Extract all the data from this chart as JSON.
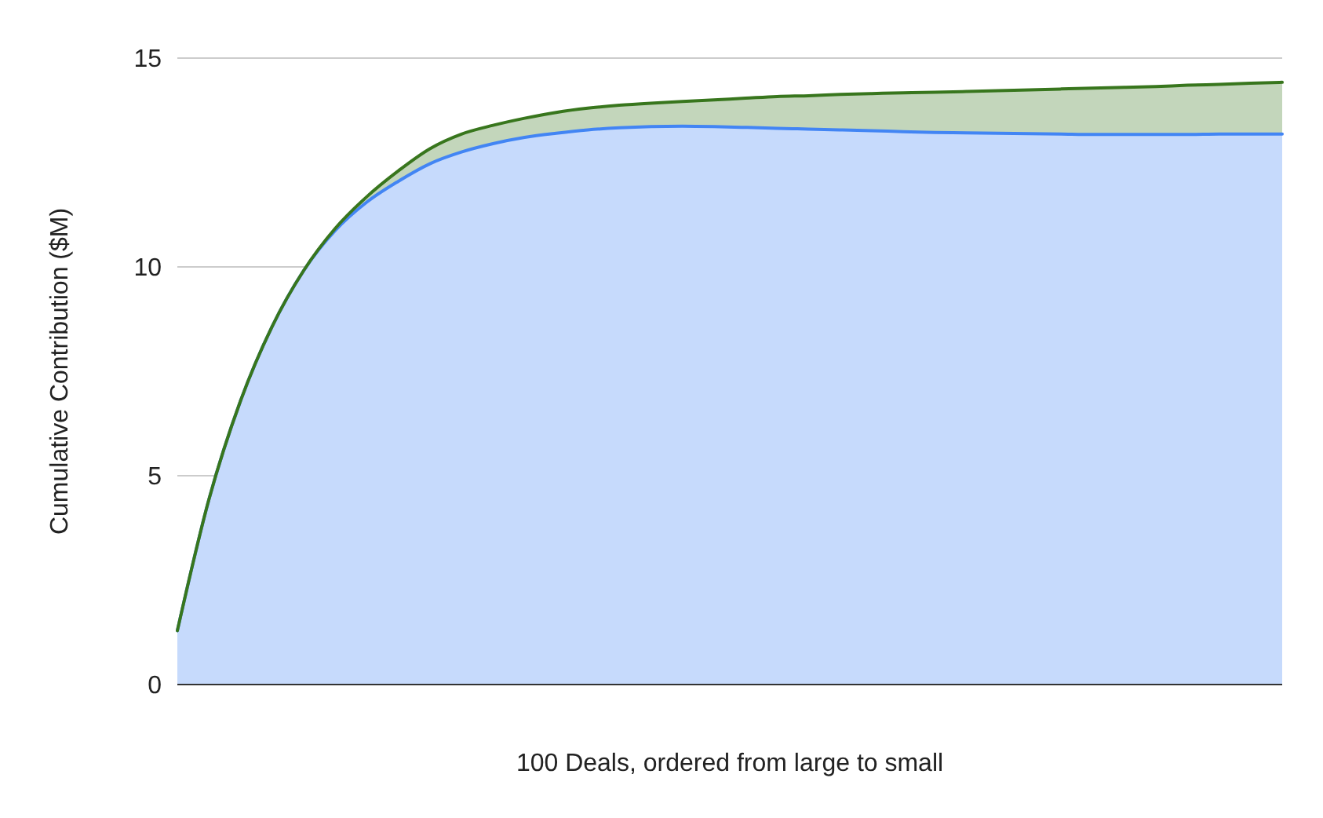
{
  "chart_data": {
    "type": "area",
    "stacked": true,
    "xlabel": "100 Deals, ordered from large to small",
    "ylabel": "Cumulative Contribution ($M)",
    "categories": [
      null,
      null,
      null,
      null,
      null,
      null,
      null,
      null,
      null,
      null,
      null,
      null,
      null,
      null,
      null,
      null,
      null,
      null,
      null,
      null,
      null,
      null,
      null,
      null,
      null,
      null,
      null,
      null,
      null,
      null,
      null,
      null,
      null,
      null,
      null,
      null
    ],
    "series": [
      {
        "color": "#4285f4",
        "values": [
          1.29,
          4.43,
          6.79,
          8.57,
          9.91,
          10.87,
          11.55,
          12.05,
          12.47,
          12.75,
          12.95,
          13.1,
          13.2,
          13.28,
          13.33,
          13.36,
          13.37,
          13.36,
          13.34,
          13.32,
          13.3,
          13.28,
          13.26,
          13.24,
          13.22,
          13.21,
          13.2,
          13.19,
          13.18,
          13.17,
          13.17,
          13.17,
          13.17,
          13.18,
          13.18,
          13.18
        ]
      },
      {
        "color": "#38761d",
        "values": [
          0,
          0,
          0,
          0,
          0,
          0.05,
          0.13,
          0.25,
          0.36,
          0.43,
          0.44,
          0.46,
          0.5,
          0.52,
          0.54,
          0.56,
          0.59,
          0.64,
          0.7,
          0.76,
          0.8,
          0.85,
          0.89,
          0.93,
          0.96,
          0.99,
          1.02,
          1.05,
          1.08,
          1.11,
          1.13,
          1.15,
          1.18,
          1.19,
          1.22,
          1.24
        ]
      }
    ],
    "ylim": [
      0,
      15
    ],
    "yticks": [
      0,
      5,
      10,
      15
    ],
    "grid": "y"
  }
}
